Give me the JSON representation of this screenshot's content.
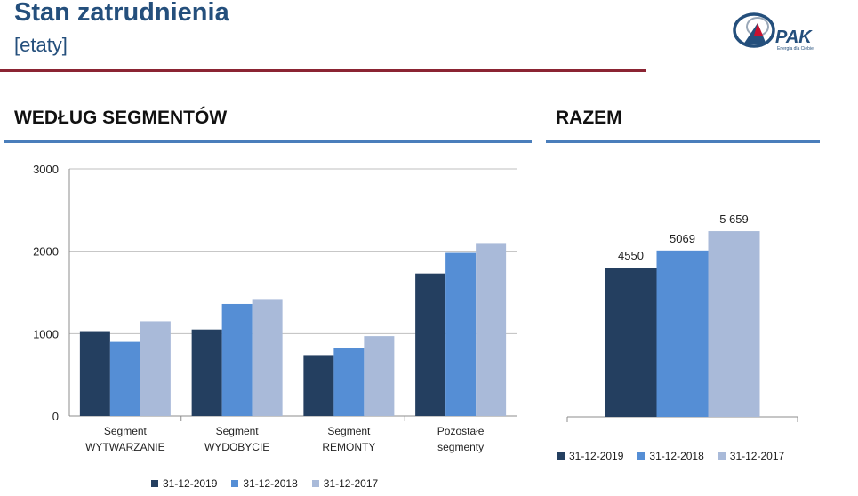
{
  "header": {
    "title": "Stan zatrudnienia",
    "subtitle": "[etaty]",
    "logo_text": "PAK",
    "logo_tagline": "Energia dla Ciebie"
  },
  "sections": {
    "segments_heading": "WEDŁUG SEGMENTÓW",
    "total_heading": "RAZEM"
  },
  "colors": {
    "series_2019": "#243f60",
    "series_2018": "#558ed5",
    "series_2017": "#a9bad9",
    "title": "#244f7c",
    "title_rule": "#8b2433",
    "section_rule": "#4a7ebb"
  },
  "chart_data": [
    {
      "type": "bar",
      "title": "WEDŁUG SEGMENTÓW",
      "categories": [
        [
          "Segment",
          "WYTWARZANIE"
        ],
        [
          "Segment",
          "WYDOBYCIE"
        ],
        [
          "Segment",
          "REMONTY"
        ],
        [
          "Pozostałe",
          "segmenty"
        ]
      ],
      "series": [
        {
          "name": "31-12-2019",
          "values": [
            1030,
            1050,
            740,
            1730
          ]
        },
        {
          "name": "31-12-2018",
          "values": [
            900,
            1360,
            830,
            1980
          ]
        },
        {
          "name": "31-12-2017",
          "values": [
            1150,
            1420,
            970,
            2100
          ]
        }
      ],
      "ylim": [
        0,
        3000
      ],
      "yticks": [
        "0",
        "1000",
        "2000",
        "3000"
      ],
      "grid": true,
      "legend": "bottom"
    },
    {
      "type": "bar",
      "title": "RAZEM",
      "categories": [
        ""
      ],
      "series": [
        {
          "name": "31-12-2019",
          "values": [
            4550
          ],
          "label": "4550"
        },
        {
          "name": "31-12-2018",
          "values": [
            5069
          ],
          "label": "5069"
        },
        {
          "name": "31-12-2017",
          "values": [
            5659
          ],
          "label": "5 659"
        }
      ],
      "ylim": [
        0,
        6500
      ],
      "grid": false,
      "legend": "bottom"
    }
  ]
}
